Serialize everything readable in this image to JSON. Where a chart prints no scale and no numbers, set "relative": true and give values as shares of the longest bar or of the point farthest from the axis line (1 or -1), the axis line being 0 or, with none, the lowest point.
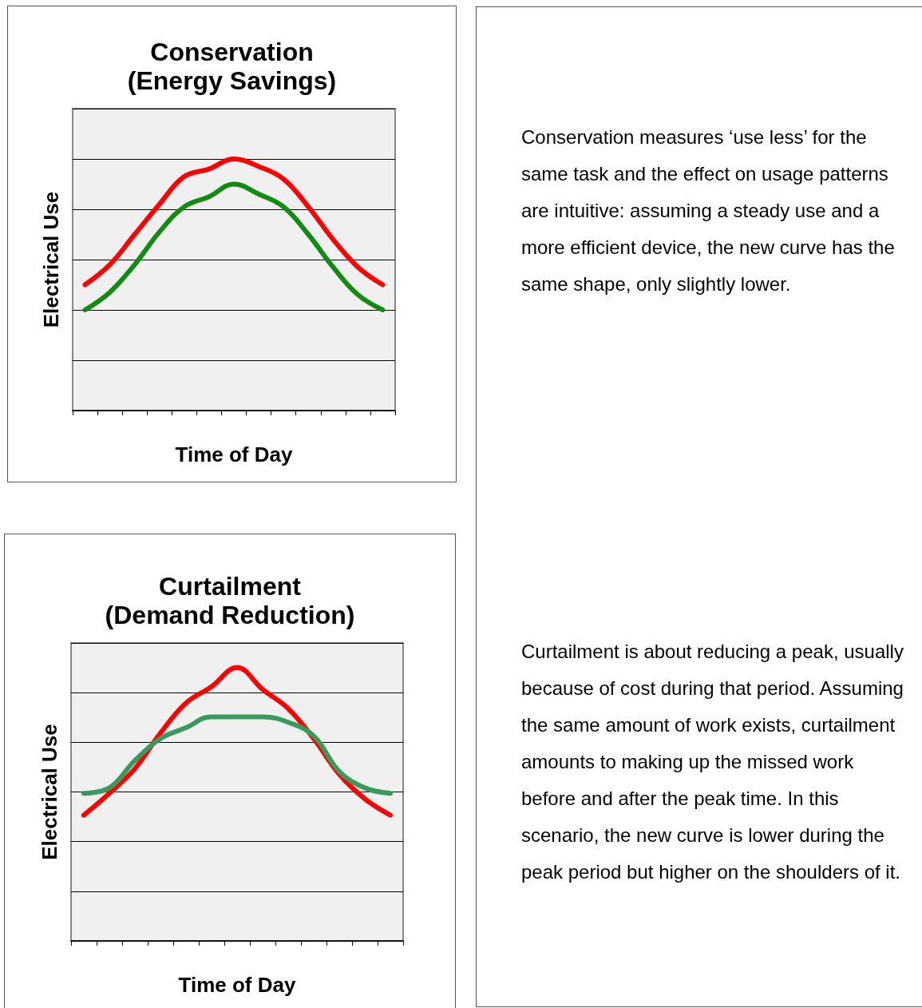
{
  "chart_data": [
    {
      "type": "line",
      "title": "Conservation",
      "subtitle": "(Energy Savings)",
      "xlabel": "Time of Day",
      "ylabel": "Electrical Use",
      "relative": true,
      "grid": "y",
      "marker": "none",
      "line_style": "solid",
      "categories": [
        null,
        null,
        null,
        null,
        null,
        null,
        null,
        null,
        null,
        null,
        null,
        null,
        null
      ],
      "series": [
        {
          "color": "#ff0000",
          "values": [
            0.5,
            0.58,
            0.7,
            0.82,
            0.93,
            0.96,
            1,
            0.97,
            0.92,
            0.81,
            0.68,
            0.57,
            0.5
          ]
        },
        {
          "color": "#138a13",
          "values": [
            0.4,
            0.47,
            0.58,
            0.71,
            0.81,
            0.85,
            0.9,
            0.86,
            0.81,
            0.7,
            0.57,
            0.46,
            0.4
          ]
        }
      ]
    },
    {
      "type": "other",
      "annotations": [
        "Conservation measures ‘use less’ for the same task and the effect on usage patterns are intuitive: assuming a steady use and a more efficient device, the new curve has the same shape, only slightly lower."
      ]
    },
    {
      "type": "line",
      "title": "Curtailment",
      "subtitle": "(Demand Reduction)",
      "xlabel": "Time of Day",
      "ylabel": "Electrical Use",
      "relative": true,
      "grid": "y",
      "marker": "none",
      "line_style": "solid",
      "categories": [
        null,
        null,
        null,
        null,
        null,
        null,
        null,
        null,
        null,
        null,
        null,
        null,
        null
      ],
      "series": [
        {
          "color": "#ff0000",
          "values": [
            0.46,
            0.54,
            0.63,
            0.76,
            0.87,
            0.93,
            1,
            0.92,
            0.85,
            0.74,
            0.61,
            0.52,
            0.46
          ]
        },
        {
          "color": "#3a9a5e",
          "values": [
            0.54,
            0.56,
            0.66,
            0.74,
            0.78,
            0.82,
            0.82,
            0.82,
            0.8,
            0.75,
            0.62,
            0.56,
            0.54
          ]
        }
      ]
    },
    {
      "type": "other",
      "annotations": [
        "Curtailment is about reducing a peak, usually because of cost during that period. Assuming the same amount of work exists, curtailment amounts to making up the missed work before and after the peak time. In this scenario, the new curve is lower during the peak period but higher on the shoulders of it."
      ]
    }
  ]
}
